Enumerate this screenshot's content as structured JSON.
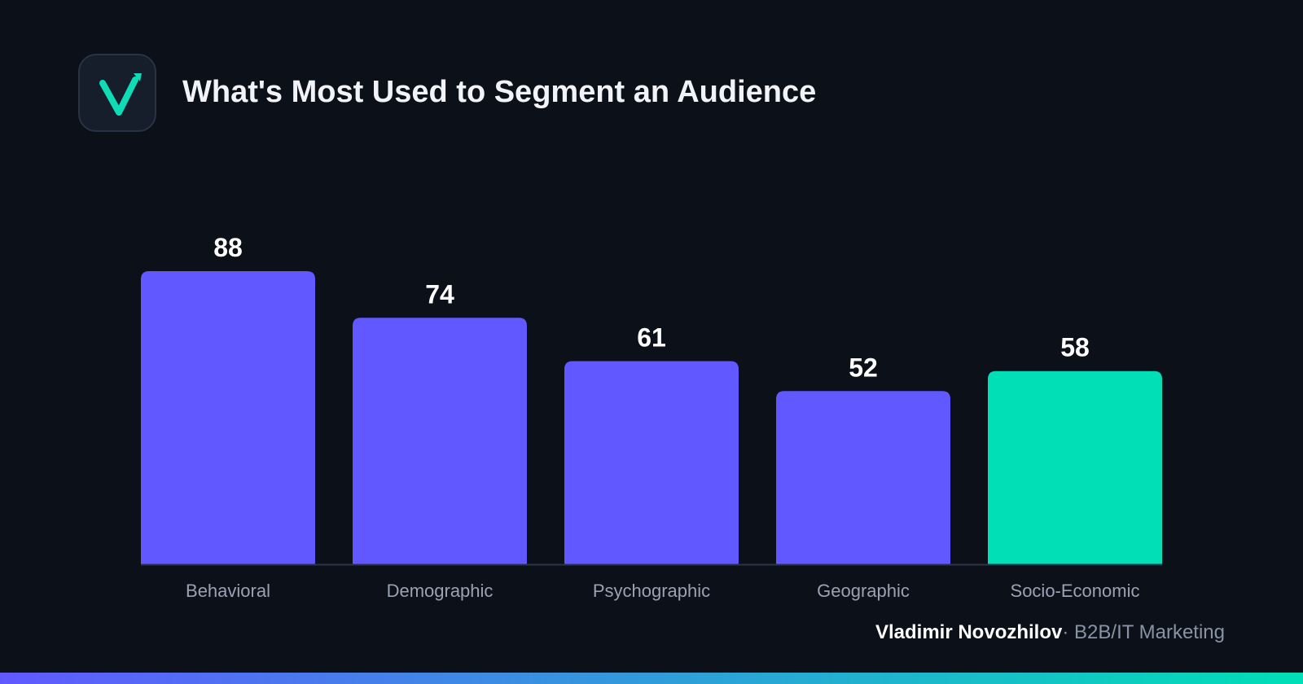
{
  "header": {
    "title": "What's Most Used to Segment an Audience"
  },
  "logo": {
    "icon": "checkmark-arrow-icon",
    "color": "#0fdcb4"
  },
  "chart_data": {
    "type": "bar",
    "categories": [
      "Behavioral",
      "Demographic",
      "Psychographic",
      "Geographic",
      "Socio-Economic"
    ],
    "values": [
      88,
      74,
      61,
      52,
      58
    ],
    "highlight_index": 4,
    "colors": {
      "bar": "#6159ff",
      "highlight": "#00dfb6",
      "value_label": "#ffffff",
      "category_label": "#9aa2b3",
      "baseline": "#2c3448"
    },
    "ylim": [
      0,
      88
    ],
    "grid": false,
    "legend": "none"
  },
  "footer": {
    "author": "Vladimir Novozhilov",
    "separator": "·",
    "role": "B2B/IT Marketing"
  },
  "bottom_bar": {
    "gradient": [
      "#6159ff",
      "#00dfb6"
    ]
  }
}
